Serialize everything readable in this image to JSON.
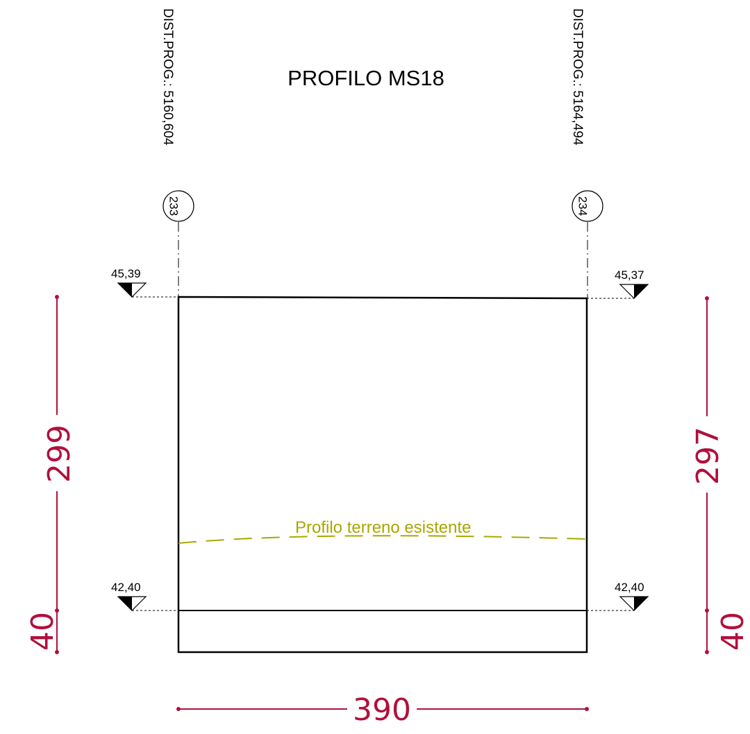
{
  "title": "PROFILO MS18",
  "stations": {
    "left": {
      "label": "DIST.PROG.: 5160,604",
      "number": "233"
    },
    "right": {
      "label": "DIST.PROG.: 5164,494",
      "number": "234"
    }
  },
  "elevations": {
    "top_left": "45,39",
    "top_right": "45,37",
    "bottom_left": "42,40",
    "bottom_right": "42,40"
  },
  "dimensions": {
    "left_height": "299",
    "left_base": "40",
    "right_height": "297",
    "right_base": "40",
    "width": "390"
  },
  "terrain_label": "Profilo terreno esistente",
  "colors": {
    "dimension": "#b0103c",
    "terrain": "#a8a800",
    "outline": "#000000"
  }
}
